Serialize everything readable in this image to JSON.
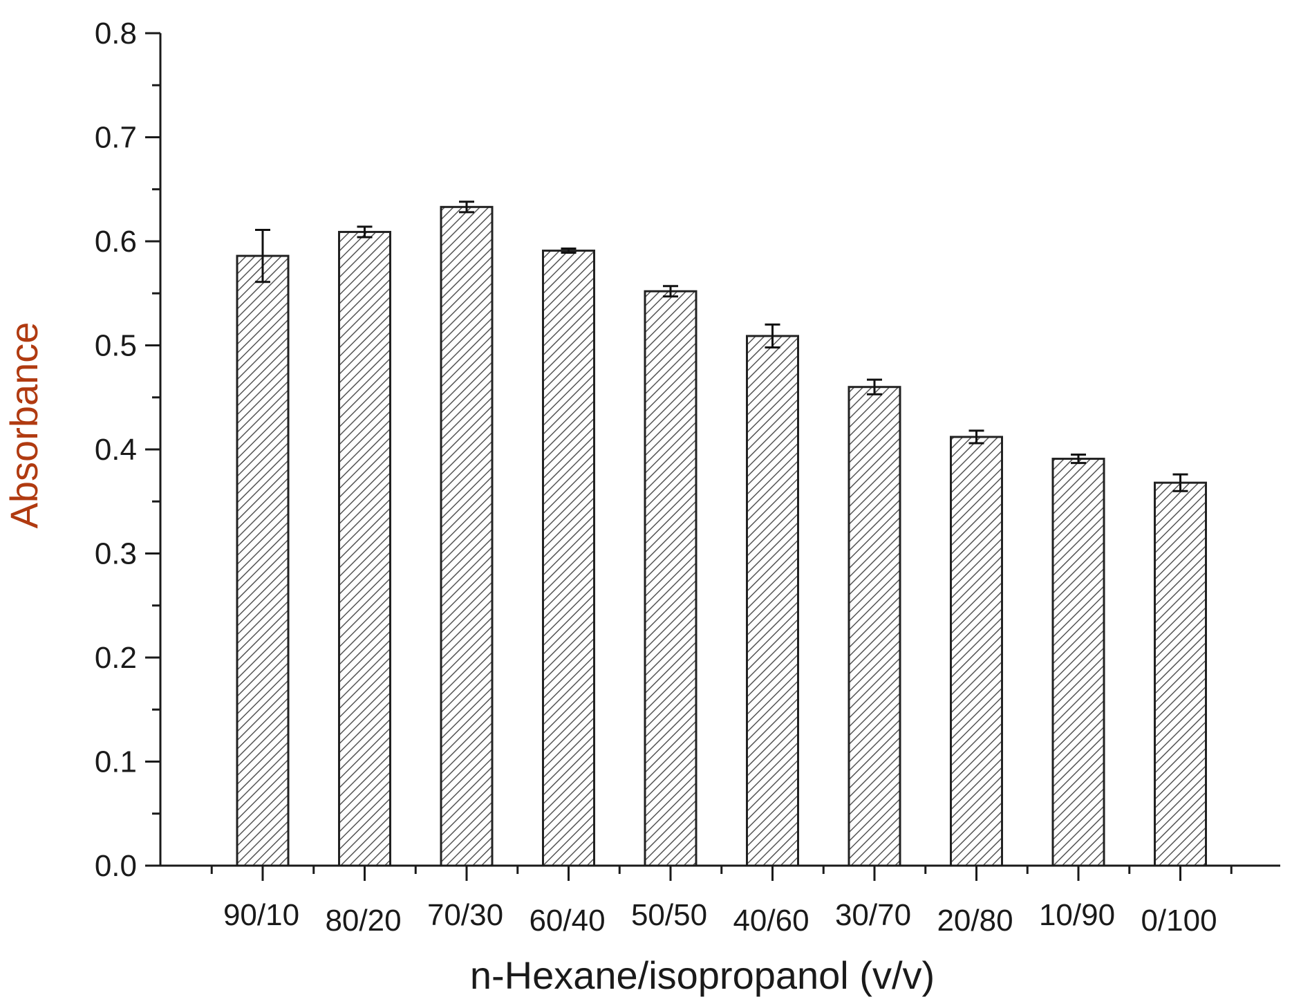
{
  "chart_data": {
    "type": "bar",
    "title": "",
    "xlabel": "n-Hexane/isopropanol (v/v)",
    "ylabel": "Absorbance",
    "ylim": [
      0.0,
      0.8
    ],
    "yticks": [
      "0.0",
      "0.1",
      "0.2",
      "0.3",
      "0.4",
      "0.5",
      "0.6",
      "0.7",
      "0.8"
    ],
    "categories": [
      "90/10",
      "80/20",
      "70/30",
      "60/40",
      "50/50",
      "40/60",
      "30/70",
      "20/80",
      "10/90",
      "0/100"
    ],
    "values": [
      0.586,
      0.609,
      0.633,
      0.591,
      0.552,
      0.509,
      0.46,
      0.412,
      0.391,
      0.368
    ],
    "errors": [
      0.025,
      0.005,
      0.005,
      0.002,
      0.005,
      0.011,
      0.007,
      0.006,
      0.004,
      0.008
    ],
    "grid": false,
    "legend": "none",
    "bar_fill": "hatched",
    "colors": {
      "axis": "#1a1a1a",
      "bar_edge": "#222222",
      "hatch": "#555555",
      "ylabel": "#b03a10",
      "xlabel": "#1a1a1a"
    }
  }
}
